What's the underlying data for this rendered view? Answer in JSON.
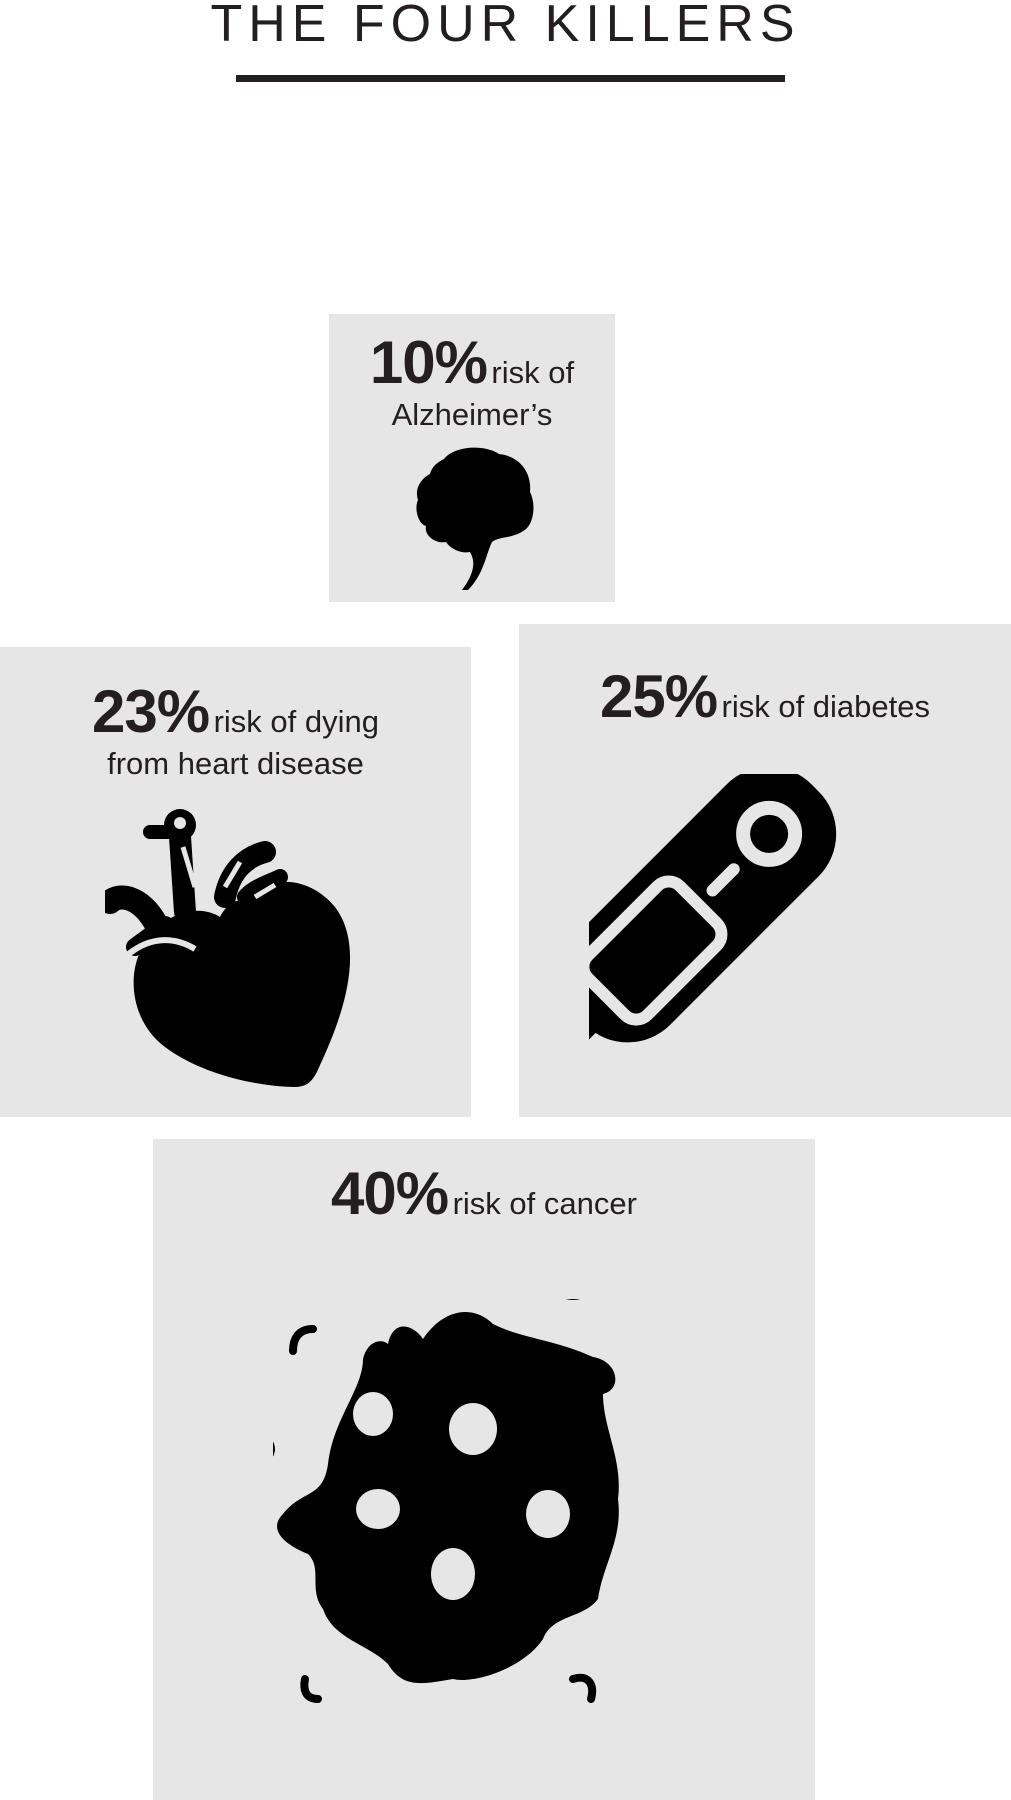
{
  "title": "THE FOUR KILLERS",
  "cards": [
    {
      "percent": "10%",
      "line1": "risk of",
      "line2": "Alzheimer’s",
      "icon": "brain-icon"
    },
    {
      "percent": "23%",
      "line1": "risk of dying",
      "line2": "from heart disease",
      "icon": "heart-organ-icon"
    },
    {
      "percent": "25%",
      "line1": "risk of diabetes",
      "icon": "glucose-meter-icon"
    },
    {
      "percent": "40%",
      "line1": "risk of cancer",
      "icon": "cancer-cell-icon"
    }
  ],
  "colors": {
    "card_bg": "#e6e6e7",
    "ink": "#231f20"
  }
}
